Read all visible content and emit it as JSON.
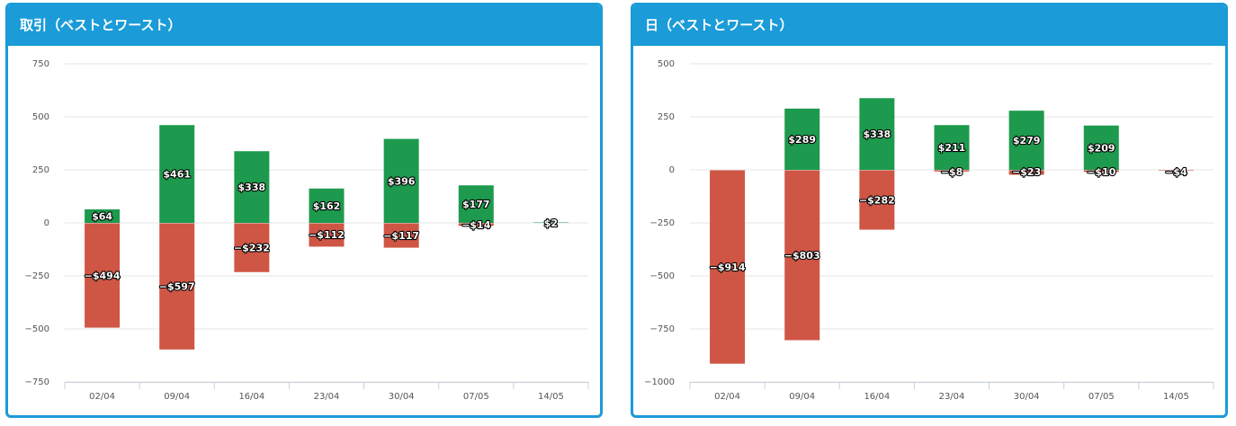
{
  "panels": [
    {
      "title": "取引（ベストとワースト）"
    },
    {
      "title": "日（ベストとワースト）"
    }
  ],
  "colors": {
    "positive": "#1d9a4d",
    "negative": "#cf5645",
    "header": "#1b9bd7"
  },
  "chart_data": [
    {
      "type": "bar",
      "title": "取引（ベストとワースト）",
      "categories": [
        "02/04",
        "09/04",
        "16/04",
        "23/04",
        "30/04",
        "07/05",
        "14/05"
      ],
      "series": [
        {
          "values": [
            64,
            461,
            338,
            162,
            396,
            177,
            2
          ],
          "labels": [
            "$64",
            "$461",
            "$338",
            "$162",
            "$396",
            "$177",
            "$2"
          ]
        },
        {
          "values": [
            -494,
            -597,
            -232,
            -112,
            -117,
            -14,
            0
          ],
          "labels": [
            "−$494",
            "−$597",
            "−$232",
            "−$112",
            "−$117",
            "−$14",
            ""
          ]
        }
      ],
      "ylim": [
        -750,
        750
      ],
      "yticks": [
        750,
        500,
        250,
        0,
        -250,
        -500,
        -750
      ],
      "ytick_labels": [
        "750",
        "500",
        "250",
        "0",
        "−250",
        "−500",
        "−750"
      ],
      "grid": true,
      "stacked": true
    },
    {
      "type": "bar",
      "title": "日（ベストとワースト）",
      "categories": [
        "02/04",
        "09/04",
        "16/04",
        "23/04",
        "30/04",
        "07/05",
        "14/05"
      ],
      "series": [
        {
          "values": [
            0,
            289,
            338,
            211,
            279,
            209,
            0
          ],
          "labels": [
            "",
            "$289",
            "$338",
            "$211",
            "$279",
            "$209",
            ""
          ]
        },
        {
          "values": [
            -914,
            -803,
            -282,
            -8,
            -23,
            -10,
            -4
          ],
          "labels": [
            "−$914",
            "−$803",
            "−$282",
            "−$8",
            "−$23",
            "−$10",
            "−$4"
          ]
        }
      ],
      "ylim": [
        -1000,
        500
      ],
      "yticks": [
        500,
        250,
        0,
        -250,
        -500,
        -750,
        -1000
      ],
      "ytick_labels": [
        "500",
        "250",
        "0",
        "−250",
        "−500",
        "−750",
        "−1000"
      ],
      "grid": true,
      "stacked": true
    }
  ]
}
